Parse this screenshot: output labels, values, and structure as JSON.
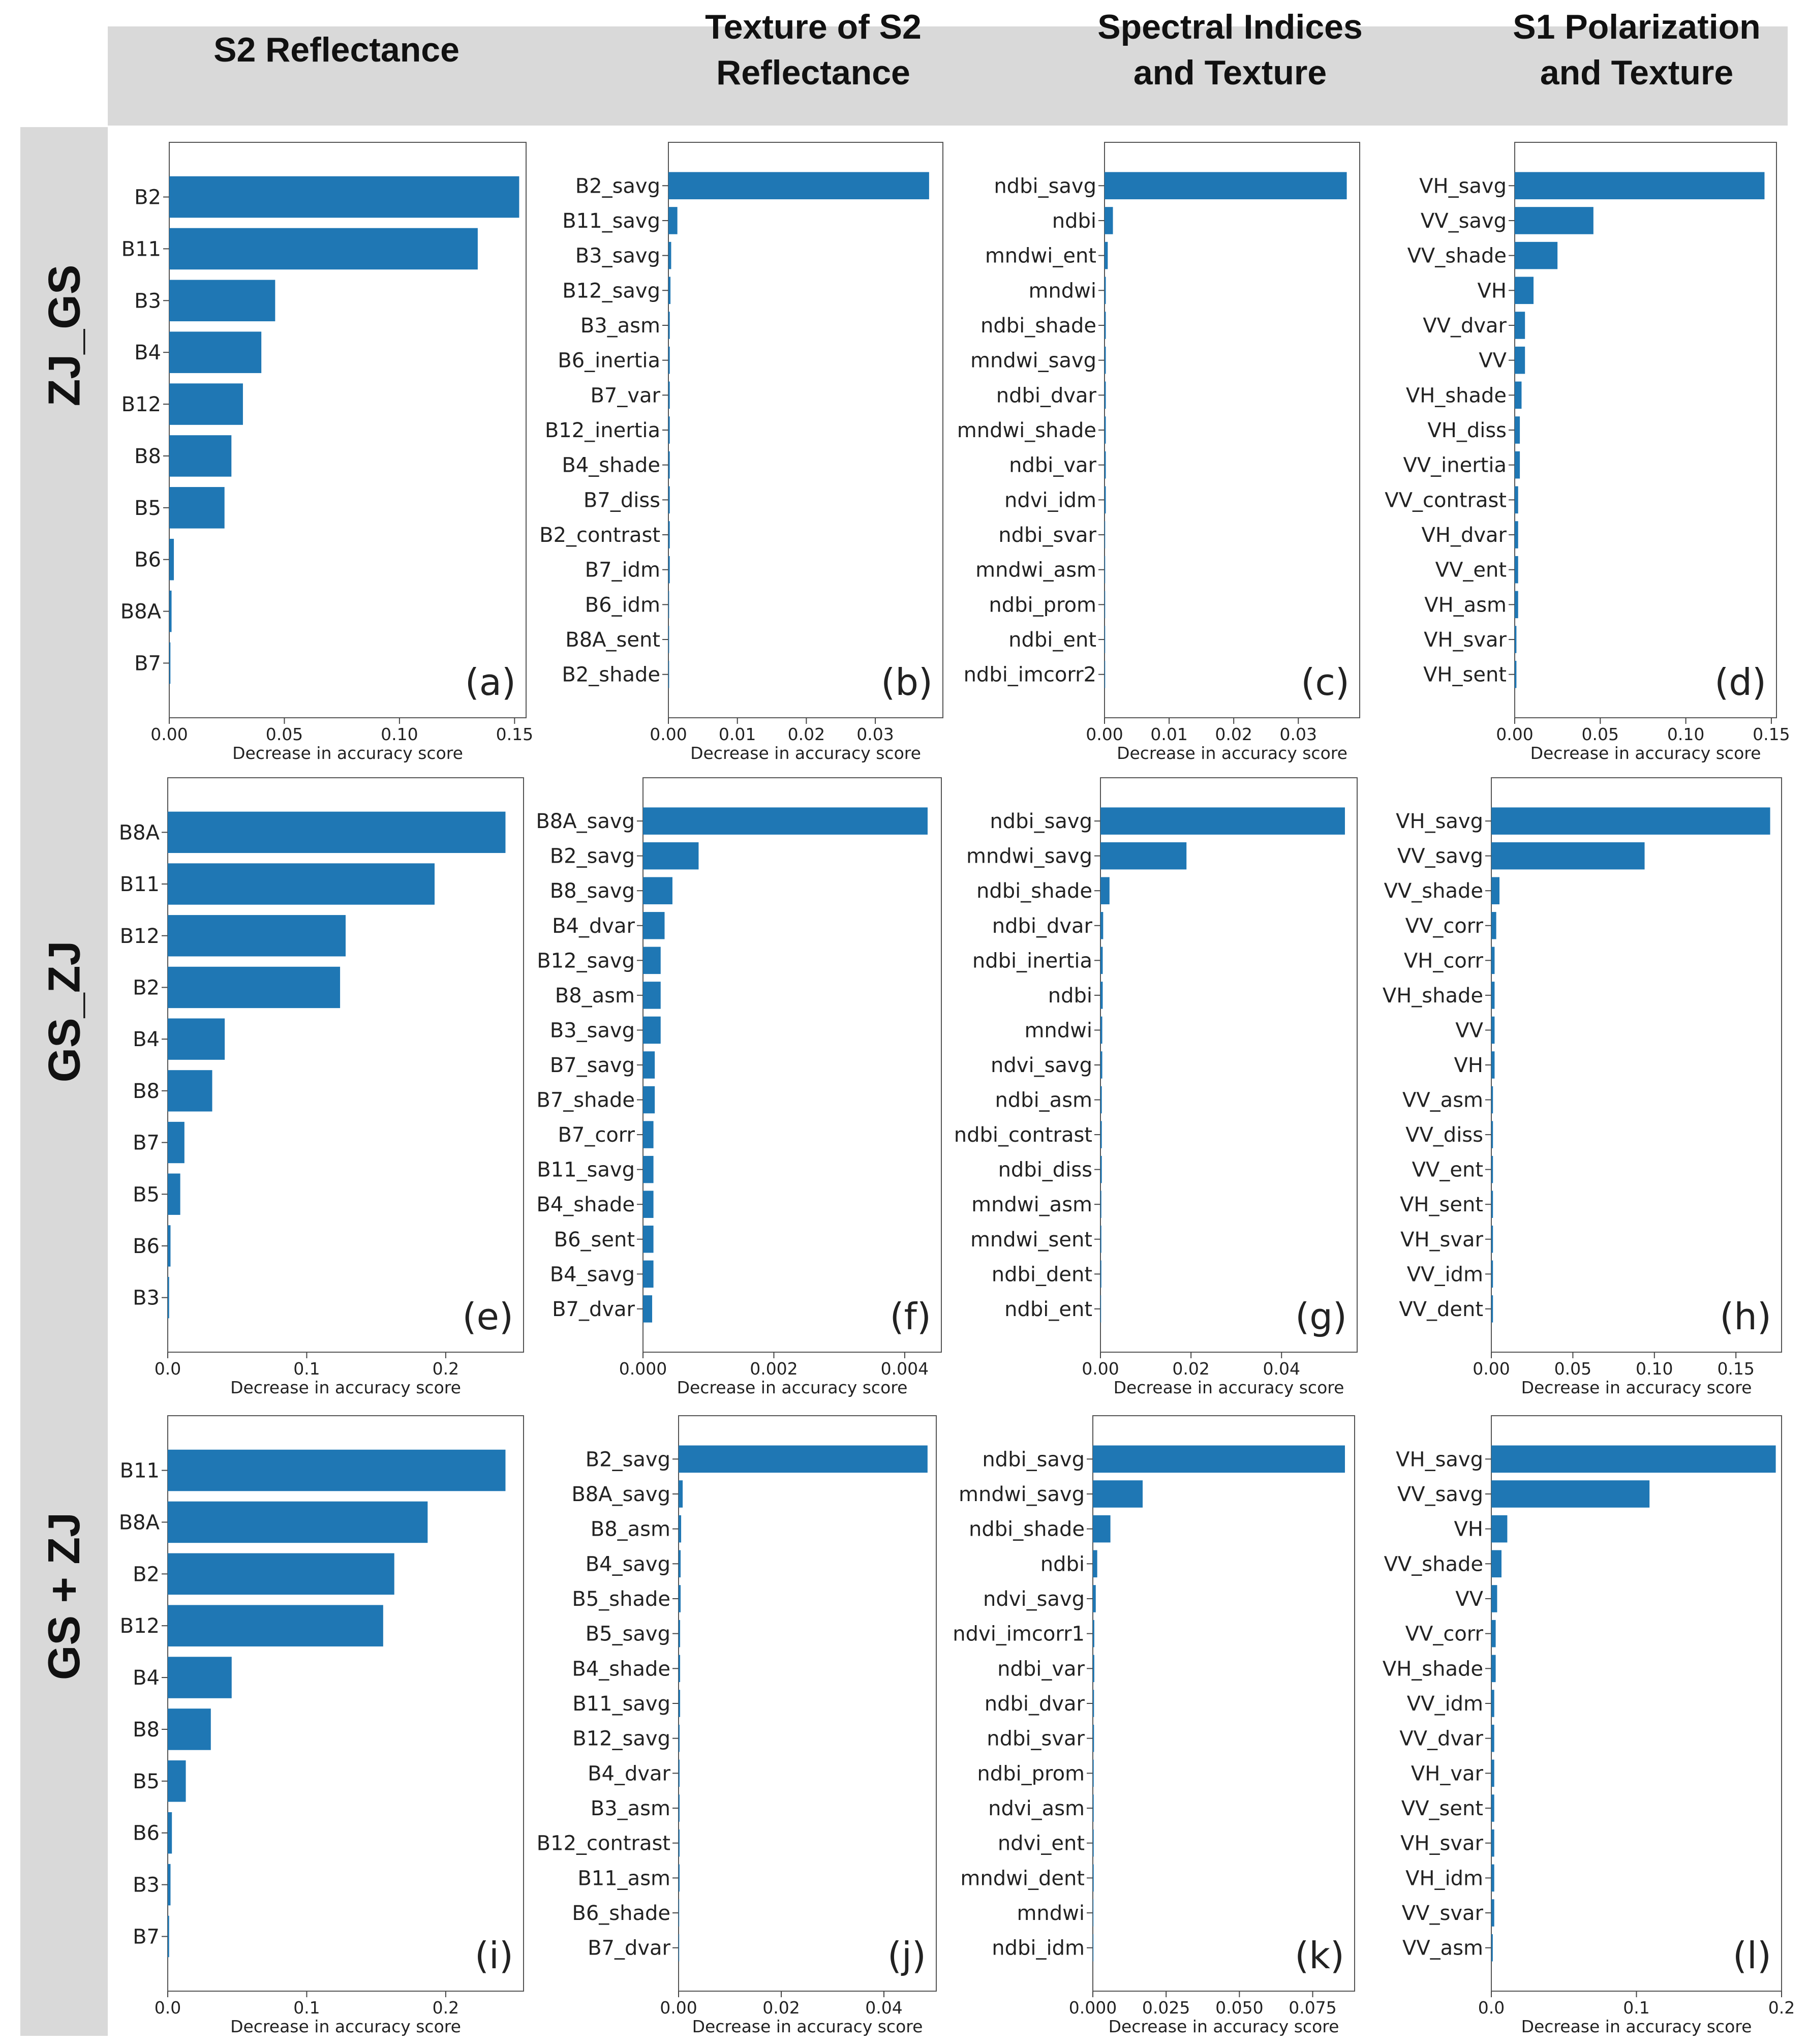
{
  "column_titles": [
    "S2 Reflectance",
    "Texture of S2\nReflectance",
    "Spectral Indices\nand  Texture",
    "S1 Polarization\nand Texture"
  ],
  "row_titles": [
    "ZJ_GS",
    "GS_ZJ",
    "GS + ZJ"
  ],
  "colors": {
    "bar": "#1f77b4",
    "header_bg": "#d9d9d9"
  },
  "chart_data": [
    {
      "panel": "(a)",
      "type": "bar",
      "orientation": "horizontal",
      "xlabel": "Decrease in accuracy score",
      "xlim": [
        0,
        0.155
      ],
      "xticks": [
        "0.00",
        "0.05",
        "0.10",
        "0.15"
      ],
      "categories": [
        "B2",
        "B11",
        "B3",
        "B4",
        "B12",
        "B8",
        "B5",
        "B6",
        "B8A",
        "B7"
      ],
      "values": [
        0.152,
        0.134,
        0.046,
        0.04,
        0.032,
        0.027,
        0.024,
        0.002,
        0.001,
        0.0005
      ]
    },
    {
      "panel": "(b)",
      "type": "bar",
      "orientation": "horizontal",
      "xlabel": "Decrease in accuracy score",
      "xlim": [
        0,
        0.0398
      ],
      "xticks": [
        "0.00",
        "0.01",
        "0.02",
        "0.03"
      ],
      "categories": [
        "B2_savg",
        "B11_savg",
        "B3_savg",
        "B12_savg",
        "B3_asm",
        "B6_inertia",
        "B7_var",
        "B12_inertia",
        "B4_shade",
        "B7_diss",
        "B2_contrast",
        "B7_idm",
        "B6_idm",
        "B8A_sent",
        "B2_shade"
      ],
      "values": [
        0.0378,
        0.0013,
        0.0004,
        0.0003,
        0.0002,
        0.0002,
        0.0002,
        0.0002,
        0.0002,
        0.0002,
        0.0002,
        0.0002,
        0.0001,
        0.0001,
        0.0001
      ]
    },
    {
      "panel": "(c)",
      "type": "bar",
      "orientation": "horizontal",
      "xlabel": "Decrease in accuracy score",
      "xlim": [
        0,
        0.0395
      ],
      "xticks": [
        "0.00",
        "0.01",
        "0.02",
        "0.03"
      ],
      "categories": [
        "ndbi_savg",
        "ndbi",
        "mndwi_ent",
        "mndwi",
        "ndbi_shade",
        "mndwi_savg",
        "ndbi_dvar",
        "mndwi_shade",
        "ndbi_var",
        "ndvi_idm",
        "ndbi_svar",
        "mndwi_asm",
        "ndbi_prom",
        "ndbi_ent",
        "ndbi_imcorr2"
      ],
      "values": [
        0.0375,
        0.0013,
        0.0005,
        0.0002,
        0.0002,
        0.0002,
        0.0002,
        0.0002,
        0.0002,
        0.0002,
        0.0001,
        0.0001,
        0.0001,
        0.0001,
        0.0001
      ]
    },
    {
      "panel": "(d)",
      "type": "bar",
      "orientation": "horizontal",
      "xlabel": "Decrease in accuracy score",
      "xlim": [
        0,
        0.153
      ],
      "xticks": [
        "0.00",
        "0.05",
        "0.10",
        "0.15"
      ],
      "categories": [
        "VH_savg",
        "VV_savg",
        "VV_shade",
        "VH",
        "VV_dvar",
        "VV",
        "VH_shade",
        "VH_diss",
        "VV_inertia",
        "VV_contrast",
        "VH_dvar",
        "VV_ent",
        "VH_asm",
        "VH_svar",
        "VH_sent"
      ],
      "values": [
        0.146,
        0.046,
        0.025,
        0.011,
        0.006,
        0.006,
        0.004,
        0.003,
        0.003,
        0.002,
        0.002,
        0.002,
        0.002,
        0.001,
        0.001
      ]
    },
    {
      "panel": "(e)",
      "type": "bar",
      "orientation": "horizontal",
      "xlabel": "Decrease in accuracy score",
      "xlim": [
        0,
        0.256
      ],
      "xticks": [
        "0.0",
        "0.1",
        "0.2"
      ],
      "categories": [
        "B8A",
        "B11",
        "B12",
        "B2",
        "B4",
        "B8",
        "B7",
        "B5",
        "B6",
        "B3"
      ],
      "values": [
        0.243,
        0.192,
        0.128,
        0.124,
        0.041,
        0.032,
        0.012,
        0.009,
        0.002,
        0.001
      ]
    },
    {
      "panel": "(f)",
      "type": "bar",
      "orientation": "horizontal",
      "xlabel": "Decrease in accuracy score",
      "xlim": [
        0,
        0.00456
      ],
      "xticks": [
        "0.000",
        "0.002",
        "0.004"
      ],
      "categories": [
        "B8A_savg",
        "B2_savg",
        "B8_savg",
        "B4_dvar",
        "B12_savg",
        "B8_asm",
        "B3_savg",
        "B7_savg",
        "B7_shade",
        "B7_corr",
        "B11_savg",
        "B4_shade",
        "B6_sent",
        "B4_savg",
        "B7_dvar"
      ],
      "values": [
        0.00435,
        0.00085,
        0.00045,
        0.00033,
        0.00027,
        0.00027,
        0.00027,
        0.00018,
        0.00018,
        0.00016,
        0.00016,
        0.00016,
        0.00016,
        0.00016,
        0.00014
      ]
    },
    {
      "panel": "(g)",
      "type": "bar",
      "orientation": "horizontal",
      "xlabel": "Decrease in accuracy score",
      "xlim": [
        0,
        0.0567
      ],
      "xticks": [
        "0.00",
        "0.02",
        "0.04"
      ],
      "categories": [
        "ndbi_savg",
        "mndwi_savg",
        "ndbi_shade",
        "ndbi_dvar",
        "ndbi_inertia",
        "ndbi",
        "mndwi",
        "ndvi_savg",
        "ndbi_asm",
        "ndbi_contrast",
        "ndbi_diss",
        "mndwi_asm",
        "mndwi_sent",
        "ndbi_dent",
        "ndbi_ent"
      ],
      "values": [
        0.054,
        0.019,
        0.002,
        0.0006,
        0.0005,
        0.0005,
        0.0004,
        0.0004,
        0.0003,
        0.0003,
        0.0003,
        0.0002,
        0.0002,
        0.0002,
        0.0001
      ]
    },
    {
      "panel": "(h)",
      "type": "bar",
      "orientation": "horizontal",
      "xlabel": "Decrease in accuracy score",
      "xlim": [
        0,
        0.178
      ],
      "xticks": [
        "0.00",
        "0.05",
        "0.10",
        "0.15"
      ],
      "categories": [
        "VH_savg",
        "VV_savg",
        "VV_shade",
        "VV_corr",
        "VH_corr",
        "VH_shade",
        "VV",
        "VH",
        "VV_asm",
        "VV_diss",
        "VV_ent",
        "VH_sent",
        "VH_svar",
        "VV_idm",
        "VV_dent"
      ],
      "values": [
        0.171,
        0.094,
        0.005,
        0.003,
        0.002,
        0.002,
        0.002,
        0.002,
        0.001,
        0.001,
        0.001,
        0.001,
        0.001,
        0.001,
        0.001
      ]
    },
    {
      "panel": "(i)",
      "type": "bar",
      "orientation": "horizontal",
      "xlabel": "Decrease in accuracy score",
      "xlim": [
        0,
        0.256
      ],
      "xticks": [
        "0.0",
        "0.1",
        "0.2"
      ],
      "categories": [
        "B11",
        "B8A",
        "B2",
        "B12",
        "B4",
        "B8",
        "B5",
        "B6",
        "B3",
        "B7"
      ],
      "values": [
        0.243,
        0.187,
        0.163,
        0.155,
        0.046,
        0.031,
        0.013,
        0.003,
        0.002,
        0.001
      ]
    },
    {
      "panel": "(j)",
      "type": "bar",
      "orientation": "horizontal",
      "xlabel": "Decrease in accuracy score",
      "xlim": [
        0,
        0.0502
      ],
      "xticks": [
        "0.00",
        "0.02",
        "0.04"
      ],
      "categories": [
        "B2_savg",
        "B8A_savg",
        "B8_asm",
        "B4_savg",
        "B5_shade",
        "B5_savg",
        "B4_shade",
        "B11_savg",
        "B12_savg",
        "B4_dvar",
        "B3_asm",
        "B12_contrast",
        "B11_asm",
        "B6_shade",
        "B7_dvar"
      ],
      "values": [
        0.0485,
        0.0008,
        0.0005,
        0.0004,
        0.0004,
        0.0003,
        0.0003,
        0.0003,
        0.0002,
        0.0002,
        0.0002,
        0.0002,
        0.0002,
        0.0001,
        0.0001
      ]
    },
    {
      "panel": "(k)",
      "type": "bar",
      "orientation": "horizontal",
      "xlabel": "Decrease in accuracy score",
      "xlim": [
        0,
        0.0893
      ],
      "xticks": [
        "0.000",
        "0.025",
        "0.050",
        "0.075"
      ],
      "categories": [
        "ndbi_savg",
        "mndwi_savg",
        "ndbi_shade",
        "ndbi",
        "ndvi_savg",
        "ndvi_imcorr1",
        "ndbi_var",
        "ndbi_dvar",
        "ndbi_svar",
        "ndbi_prom",
        "ndvi_asm",
        "ndvi_ent",
        "mndwi_dent",
        "mndwi",
        "ndbi_idm"
      ],
      "values": [
        0.086,
        0.017,
        0.006,
        0.0015,
        0.001,
        0.0005,
        0.0005,
        0.0004,
        0.0004,
        0.0003,
        0.0003,
        0.0003,
        0.0003,
        0.0002,
        0.0002
      ]
    },
    {
      "panel": "(l)",
      "type": "bar",
      "orientation": "horizontal",
      "xlabel": "Decrease in accuracy score",
      "xlim": [
        0,
        0.2
      ],
      "xticks": [
        "0.0",
        "0.1",
        "0.2"
      ],
      "categories": [
        "VH_savg",
        "VV_savg",
        "VH",
        "VV_shade",
        "VV",
        "VV_corr",
        "VH_shade",
        "VV_idm",
        "VV_dvar",
        "VH_var",
        "VV_sent",
        "VH_svar",
        "VH_idm",
        "VV_svar",
        "VV_asm"
      ],
      "values": [
        0.196,
        0.109,
        0.011,
        0.007,
        0.004,
        0.003,
        0.003,
        0.002,
        0.002,
        0.002,
        0.002,
        0.002,
        0.002,
        0.002,
        0.001
      ]
    }
  ]
}
